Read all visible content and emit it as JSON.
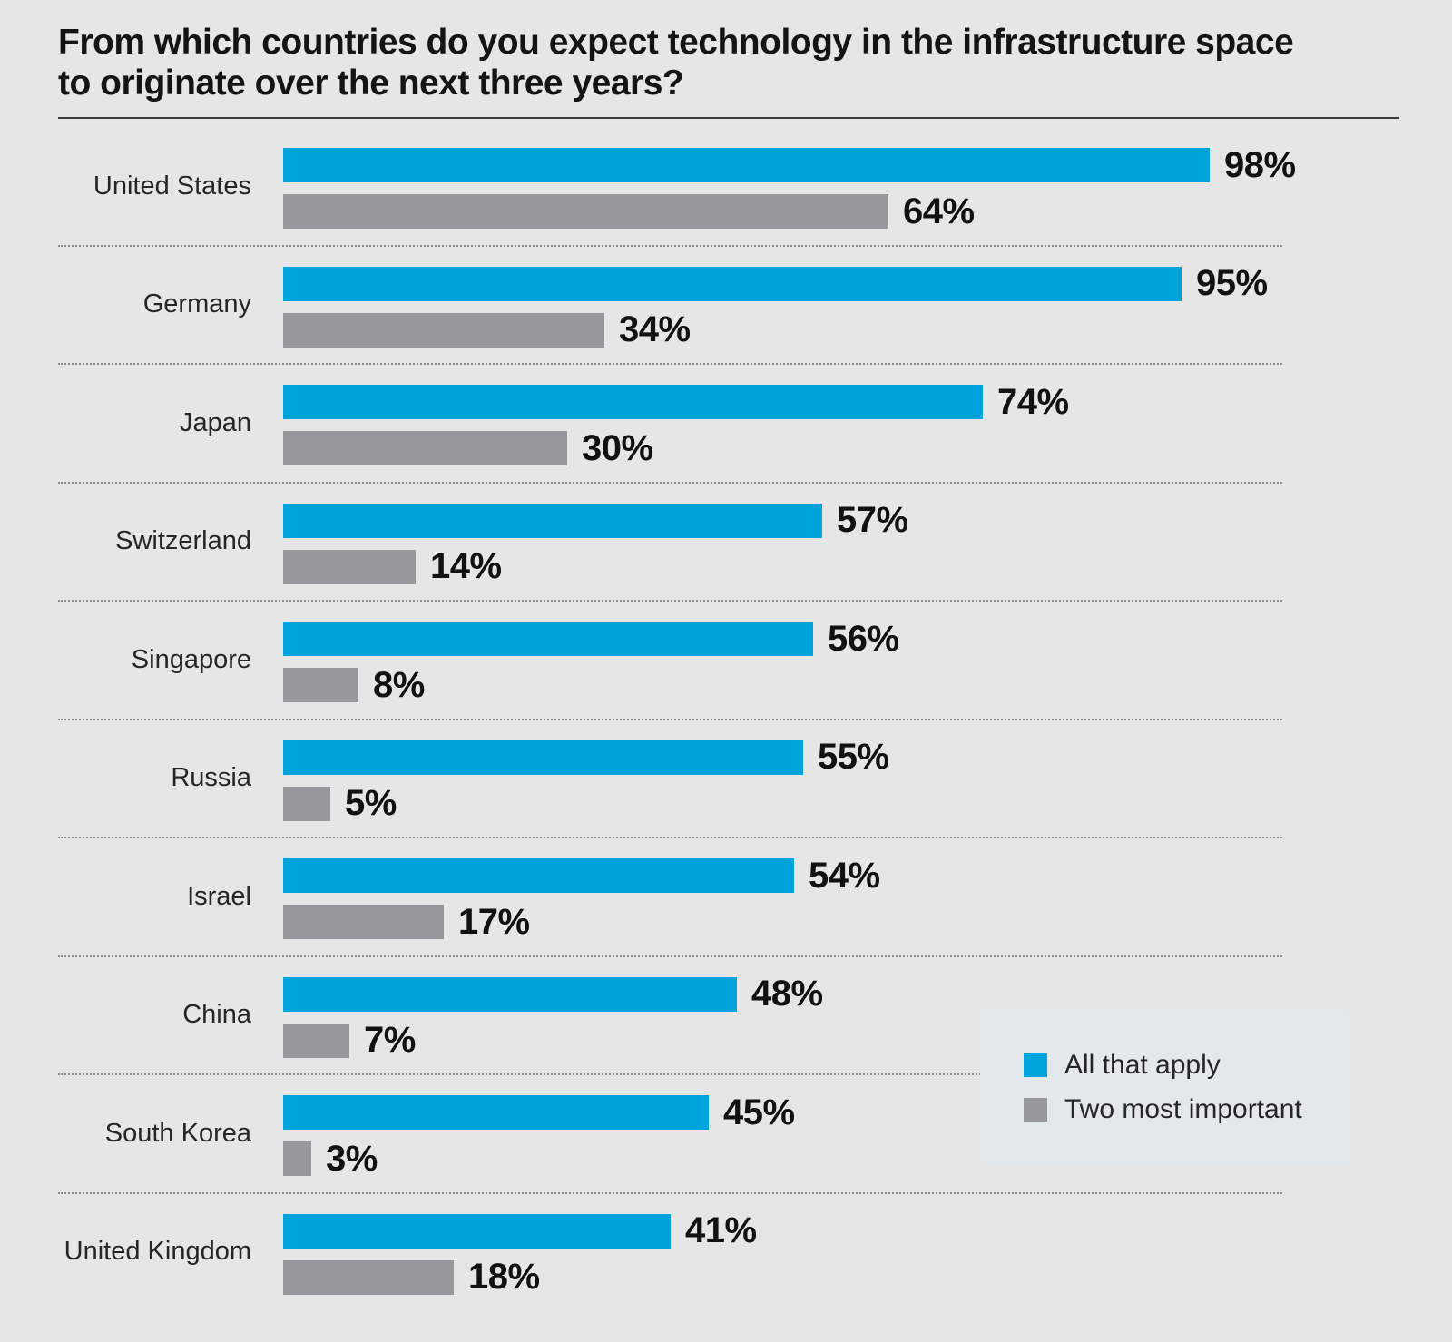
{
  "title": {
    "line1": "From which countries do you expect technology in the infrastructure space",
    "line2": "to originate over the next three years?"
  },
  "legend": {
    "items": [
      {
        "label": "All that apply",
        "color": "#00a4dd"
      },
      {
        "label": "Two most important",
        "color": "#97989b"
      }
    ]
  },
  "colors": {
    "background": "#e6e6e7",
    "legend_panel": "#e3e8ec",
    "blue_series": "#00a4dd",
    "gray_series": "#97989b",
    "separator": "#8c8c8c",
    "text": "#262626"
  },
  "chart_data": {
    "type": "bar",
    "orientation": "horizontal",
    "title": "From which countries do you expect technology in the infrastructure space to originate over the next three years?",
    "categories": [
      "United States",
      "Germany",
      "Japan",
      "Switzerland",
      "Singapore",
      "Russia",
      "Israel",
      "China",
      "South Korea",
      "United Kingdom"
    ],
    "series": [
      {
        "name": "All that apply",
        "color": "#00a4dd",
        "values": [
          98,
          95,
          74,
          57,
          56,
          55,
          54,
          48,
          45,
          41
        ]
      },
      {
        "name": "Two most important",
        "color": "#97989b",
        "values": [
          64,
          34,
          30,
          14,
          8,
          5,
          17,
          7,
          3,
          18
        ]
      }
    ],
    "value_suffix": "%",
    "xlim": [
      0,
      100
    ],
    "grid": false,
    "legend_position": "right-lower",
    "data_labels": true
  }
}
